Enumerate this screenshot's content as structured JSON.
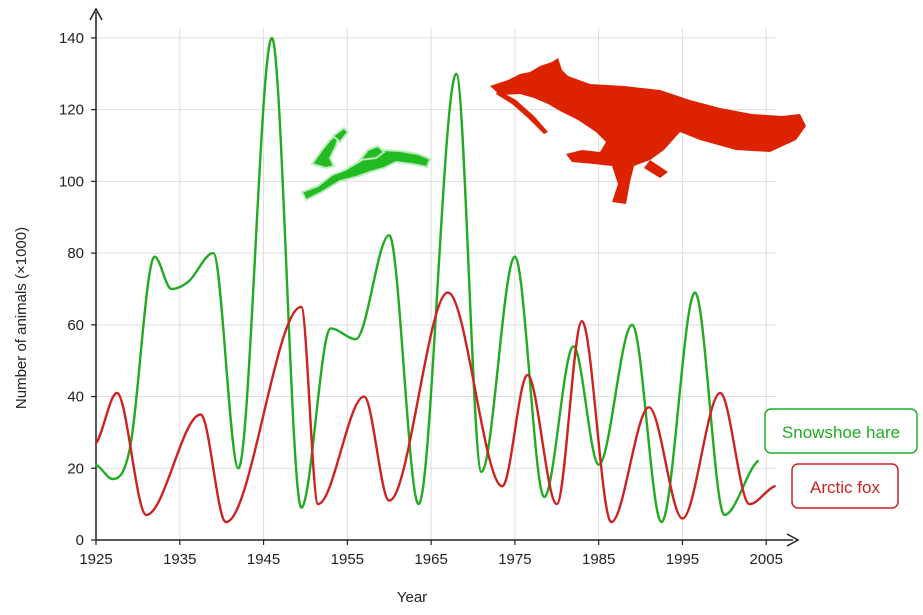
{
  "chart_data": {
    "type": "line",
    "title": "",
    "xlabel": "Year",
    "ylabel": "Number of animals (×1000)",
    "xlim": [
      1925,
      2007
    ],
    "ylim": [
      0,
      145
    ],
    "xticks": [
      1925,
      1935,
      1945,
      1955,
      1965,
      1975,
      1985,
      1995,
      2005
    ],
    "yticks": [
      0,
      20,
      40,
      60,
      80,
      100,
      120,
      140
    ],
    "grid": true,
    "series": [
      {
        "name": "Snowshoe hare",
        "color": "#22aa22",
        "x": [
          1925,
          1927,
          1929,
          1932,
          1934,
          1936,
          1939,
          1942,
          1946,
          1949.5,
          1953,
          1956,
          1960,
          1963.5,
          1968,
          1971,
          1975,
          1978.5,
          1982,
          1985,
          1989,
          1992.5,
          1996.5,
          2000,
          2004
        ],
        "y": [
          21,
          17,
          25,
          79,
          70,
          72,
          80,
          20,
          140,
          9,
          59,
          56,
          85,
          10,
          130,
          19,
          79,
          12,
          54,
          21,
          60,
          5,
          69,
          7,
          22
        ]
      },
      {
        "name": "Arctic fox",
        "color": "#cc2222",
        "x": [
          1925,
          1927.5,
          1931,
          1937.5,
          1940.5,
          1949.5,
          1951.5,
          1957,
          1960,
          1967,
          1973.5,
          1976.5,
          1980,
          1983,
          1986.5,
          1991,
          1995,
          1999.5,
          2003,
          2006
        ],
        "y": [
          27,
          41,
          7,
          35,
          5,
          65,
          10,
          40,
          11,
          69,
          15,
          46,
          10,
          61,
          5,
          37,
          6,
          41,
          10,
          15
        ]
      }
    ],
    "legend": {
      "position": "right",
      "entries": [
        "Snowshoe hare",
        "Arctic fox"
      ]
    },
    "illustrations": [
      "hare-silhouette-icon",
      "fox-silhouette-icon"
    ]
  }
}
